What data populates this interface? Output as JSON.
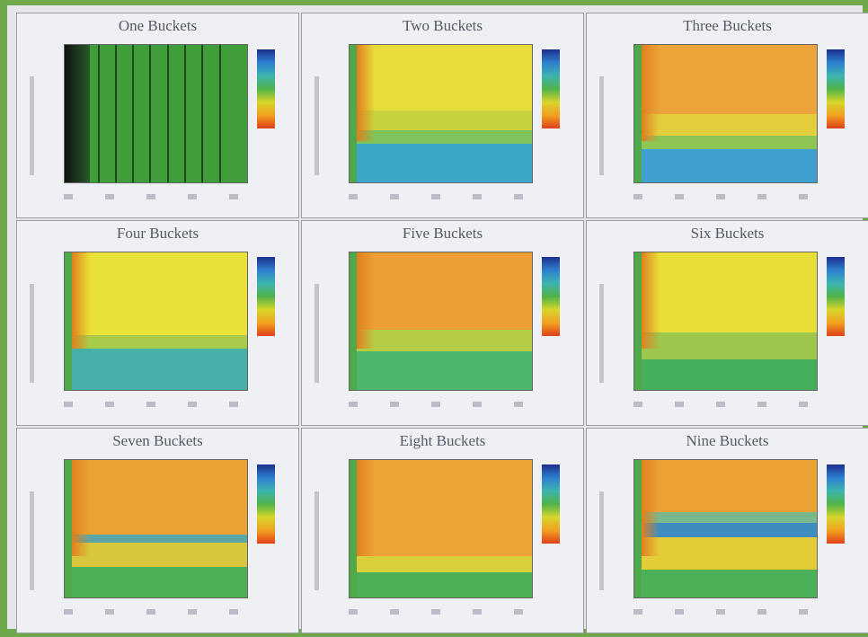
{
  "panels": [
    {
      "title": "One Buckets"
    },
    {
      "title": "Two Buckets"
    },
    {
      "title": "Three Buckets"
    },
    {
      "title": "Four Buckets"
    },
    {
      "title": "Five Buckets"
    },
    {
      "title": "Six Buckets"
    },
    {
      "title": "Seven Buckets"
    },
    {
      "title": "Eight Buckets"
    },
    {
      "title": "Nine Buckets"
    }
  ]
}
